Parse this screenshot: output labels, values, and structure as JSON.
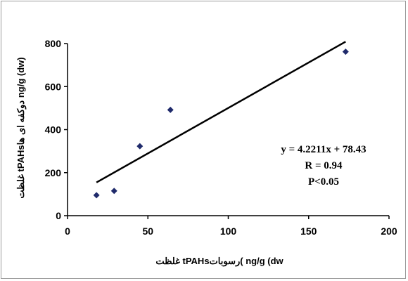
{
  "chart_data": {
    "type": "scatter",
    "title": "",
    "xlabel": "غلظت  tPAHsرسوبات(  ng/g (dw",
    "ylabel": "غلظت  tPAHsدوکفه ای ها  ng/g (dw)",
    "xlim": [
      0,
      200
    ],
    "ylim": [
      0,
      800
    ],
    "x_ticks": [
      0,
      50,
      100,
      150,
      200
    ],
    "y_ticks": [
      0,
      200,
      400,
      600,
      800
    ],
    "grid": false,
    "legend": "none",
    "series": [
      {
        "marker": "diamond",
        "color": "#1f2a6b",
        "points": [
          {
            "x": 18,
            "y": 95
          },
          {
            "x": 29,
            "y": 115
          },
          {
            "x": 45,
            "y": 323
          },
          {
            "x": 64,
            "y": 492
          },
          {
            "x": 173,
            "y": 762
          }
        ]
      }
    ],
    "trendline": {
      "slope": 4.2211,
      "intercept": 78.43,
      "x_from": 18,
      "x_to": 173,
      "color": "#000000"
    },
    "annotations": [
      "y = 4.2211x + 78.43",
      "R = 0.94",
      "P<0.05"
    ]
  }
}
